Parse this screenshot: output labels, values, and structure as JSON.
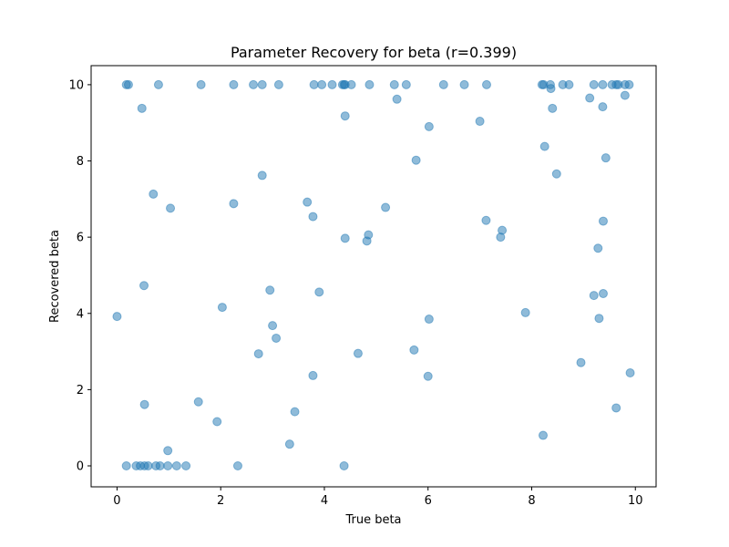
{
  "chart_data": {
    "type": "scatter",
    "title": "Parameter Recovery for beta (r=0.399)",
    "xlabel": "True beta",
    "ylabel": "Recovered beta",
    "xlim": [
      -0.5,
      10.4
    ],
    "ylim": [
      -0.55,
      10.5
    ],
    "xticks": [
      0,
      2,
      4,
      6,
      8,
      10
    ],
    "yticks": [
      0,
      2,
      4,
      6,
      8,
      10
    ],
    "grid": false,
    "marker_color": "#1f77b4",
    "marker_alpha": 0.5,
    "points": [
      [
        0.18,
        10.0
      ],
      [
        0.22,
        10.0
      ],
      [
        0.8,
        10.0
      ],
      [
        1.62,
        10.0
      ],
      [
        2.25,
        10.0
      ],
      [
        2.63,
        10.0
      ],
      [
        2.8,
        10.0
      ],
      [
        3.12,
        10.0
      ],
      [
        3.8,
        10.0
      ],
      [
        3.95,
        10.0
      ],
      [
        4.15,
        10.0
      ],
      [
        4.35,
        10.0
      ],
      [
        4.38,
        10.0
      ],
      [
        4.4,
        10.0
      ],
      [
        4.52,
        10.0
      ],
      [
        4.87,
        10.0
      ],
      [
        5.35,
        10.0
      ],
      [
        5.58,
        10.0
      ],
      [
        6.3,
        10.0
      ],
      [
        6.7,
        10.0
      ],
      [
        7.13,
        10.0
      ],
      [
        8.2,
        10.0
      ],
      [
        8.23,
        10.0
      ],
      [
        8.36,
        10.0
      ],
      [
        8.6,
        10.0
      ],
      [
        8.72,
        10.0
      ],
      [
        9.2,
        10.0
      ],
      [
        9.37,
        10.0
      ],
      [
        9.55,
        10.0
      ],
      [
        9.63,
        10.0
      ],
      [
        9.67,
        10.0
      ],
      [
        9.8,
        10.0
      ],
      [
        9.88,
        10.0
      ],
      [
        0.48,
        9.38
      ],
      [
        4.4,
        9.18
      ],
      [
        5.4,
        9.62
      ],
      [
        6.02,
        8.9
      ],
      [
        7.0,
        9.04
      ],
      [
        8.25,
        8.38
      ],
      [
        8.37,
        9.9
      ],
      [
        8.4,
        9.38
      ],
      [
        9.12,
        9.65
      ],
      [
        9.37,
        9.42
      ],
      [
        9.8,
        9.72
      ],
      [
        8.48,
        7.66
      ],
      [
        9.43,
        8.08
      ],
      [
        5.77,
        8.02
      ],
      [
        2.8,
        7.62
      ],
      [
        0.7,
        7.13
      ],
      [
        1.03,
        6.76
      ],
      [
        2.25,
        6.88
      ],
      [
        3.67,
        6.92
      ],
      [
        3.78,
        6.54
      ],
      [
        4.4,
        5.97
      ],
      [
        4.82,
        5.9
      ],
      [
        4.85,
        6.06
      ],
      [
        5.18,
        6.78
      ],
      [
        7.12,
        6.44
      ],
      [
        7.4,
        6.0
      ],
      [
        7.43,
        6.18
      ],
      [
        9.28,
        5.71
      ],
      [
        9.38,
        6.42
      ],
      [
        0.0,
        3.92
      ],
      [
        0.52,
        4.73
      ],
      [
        2.03,
        4.16
      ],
      [
        2.95,
        4.61
      ],
      [
        3.0,
        3.68
      ],
      [
        3.07,
        3.35
      ],
      [
        3.9,
        4.56
      ],
      [
        2.73,
        2.94
      ],
      [
        4.65,
        2.95
      ],
      [
        6.02,
        3.85
      ],
      [
        5.73,
        3.04
      ],
      [
        7.88,
        4.02
      ],
      [
        9.2,
        4.47
      ],
      [
        9.3,
        3.87
      ],
      [
        9.38,
        4.52
      ],
      [
        0.53,
        1.61
      ],
      [
        1.57,
        1.68
      ],
      [
        1.93,
        1.16
      ],
      [
        3.43,
        1.42
      ],
      [
        3.78,
        2.37
      ],
      [
        6.0,
        2.35
      ],
      [
        8.95,
        2.71
      ],
      [
        9.9,
        2.44
      ],
      [
        9.63,
        1.52
      ],
      [
        0.98,
        0.4
      ],
      [
        3.33,
        0.57
      ],
      [
        8.22,
        0.8
      ],
      [
        0.18,
        0.0
      ],
      [
        0.37,
        0.0
      ],
      [
        0.45,
        0.0
      ],
      [
        0.53,
        0.0
      ],
      [
        0.6,
        0.0
      ],
      [
        0.75,
        0.0
      ],
      [
        0.83,
        0.0
      ],
      [
        0.98,
        0.0
      ],
      [
        1.15,
        0.0
      ],
      [
        1.33,
        0.0
      ],
      [
        2.33,
        0.0
      ],
      [
        4.38,
        0.0
      ]
    ]
  }
}
